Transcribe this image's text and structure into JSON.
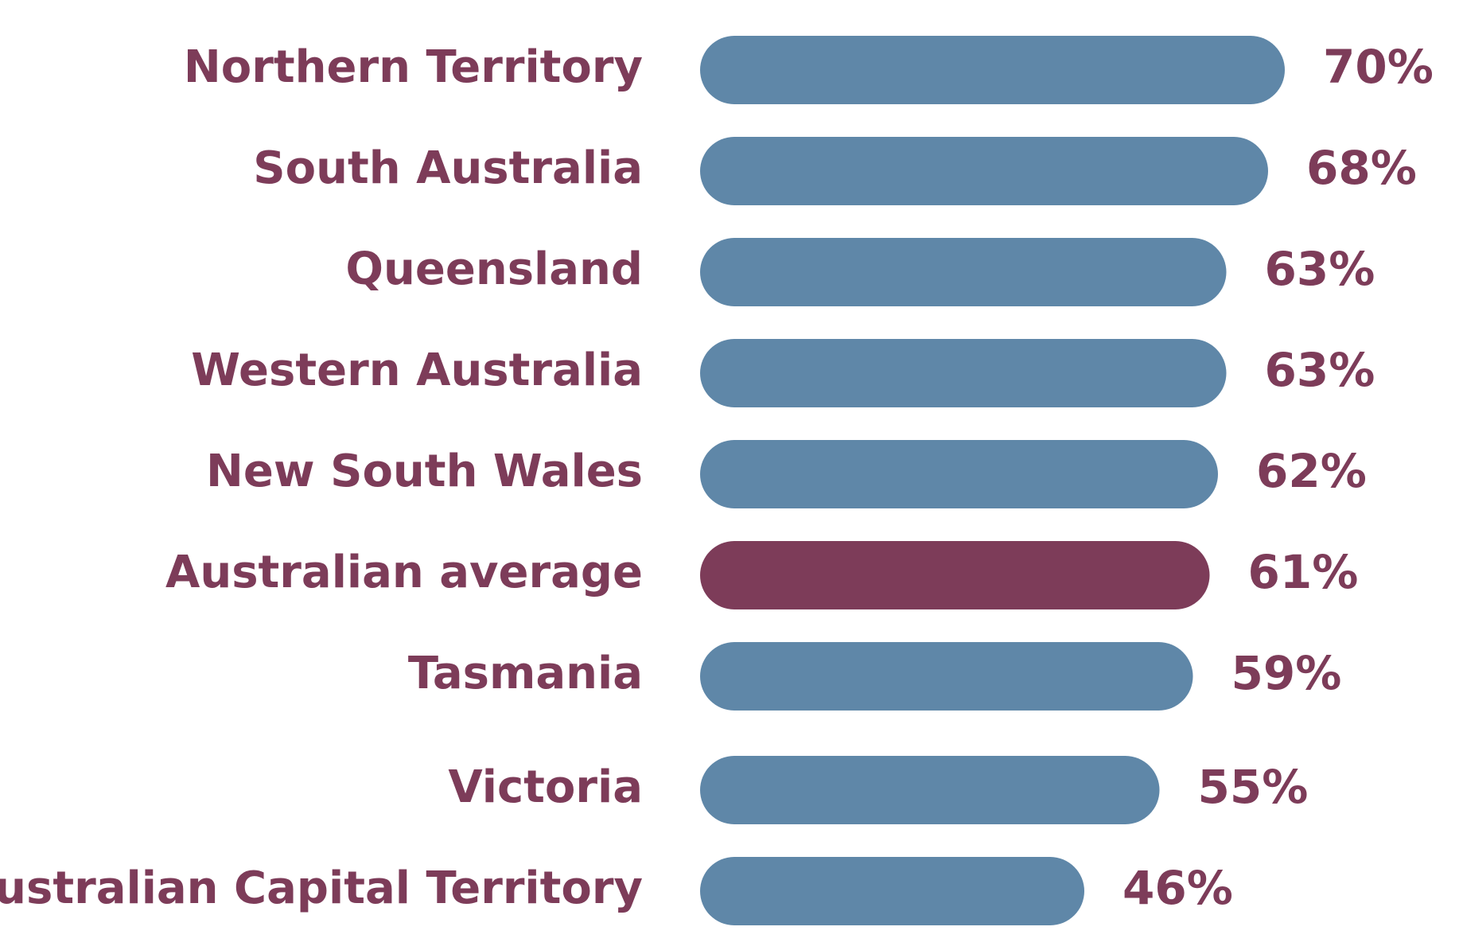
{
  "chart_data": {
    "type": "bar",
    "orientation": "horizontal",
    "categories": [
      "Northern Territory",
      "South Australia",
      "Queensland",
      "Western Australia",
      "New South Wales",
      "Australian average",
      "Tasmania",
      "Victoria",
      "Australian Capital Territory"
    ],
    "values": [
      70,
      68,
      63,
      63,
      62,
      61,
      59,
      55,
      46
    ],
    "value_labels": [
      "70%",
      "68%",
      "63%",
      "63%",
      "62%",
      "61%",
      "59%",
      "55%",
      "46%"
    ],
    "highlight_category": "Australian average",
    "colors": {
      "bar": "#5f87a8",
      "highlight_bar": "#7d3c59",
      "text": "#7d3c59"
    },
    "title": "",
    "xlabel": "",
    "ylabel": "",
    "grid": false,
    "legend": "none"
  }
}
